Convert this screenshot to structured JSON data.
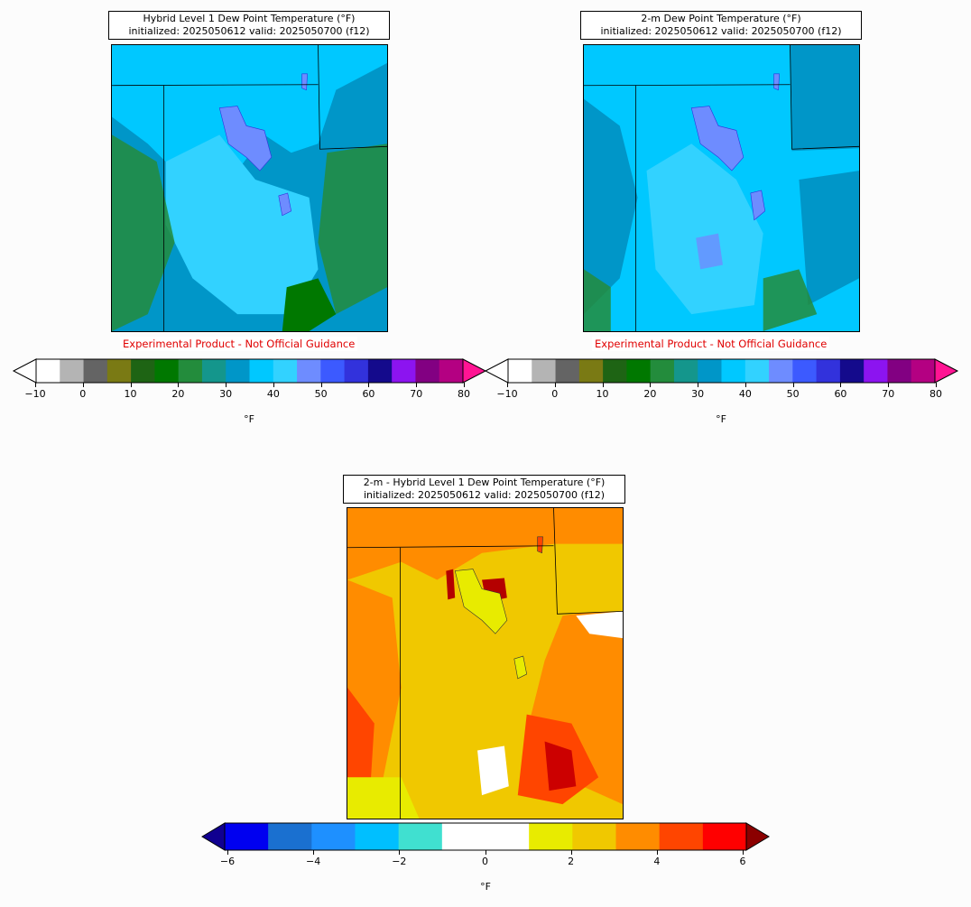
{
  "panels": {
    "hybrid": {
      "title_line1": "Hybrid Level 1 Dew Point Temperature (°F)",
      "title_line2": "initialized: 2025050612 valid: 2025050700 (f12)",
      "disclaimer": "Experimental Product - Not Official Guidance"
    },
    "twometer": {
      "title_line1": "2-m Dew Point Temperature (°F)",
      "title_line2": "initialized: 2025050612 valid: 2025050700 (f12)",
      "disclaimer": "Experimental Product - Not Official Guidance"
    },
    "diff": {
      "title_line1": "2-m - Hybrid Level 1 Dew Point Temperature (°F)",
      "title_line2": "initialized: 2025050612 valid: 2025050700 (f12)"
    }
  },
  "colorbars": {
    "dewpoint": {
      "unit": "°F",
      "ticks": [
        "−10",
        "0",
        "10",
        "20",
        "30",
        "40",
        "50",
        "60",
        "70",
        "80"
      ],
      "colors": [
        "#ffffff",
        "#b4b4b4",
        "#646464",
        "#7a7a14",
        "#1e6414",
        "#007800",
        "#238c3c",
        "#14968c",
        "#0096c8",
        "#00c8ff",
        "#32d2ff",
        "#6e8cff",
        "#3c5aff",
        "#3232dc",
        "#140a8c",
        "#8c14f0",
        "#820082",
        "#b40082"
      ],
      "under_color": "#ffffff",
      "over_color": "#ff1493"
    },
    "difference": {
      "unit": "°F",
      "ticks": [
        "−6",
        "−4",
        "−2",
        "0",
        "2",
        "4",
        "6"
      ],
      "colors": [
        "#0000f0",
        "#1a70d0",
        "#1e90ff",
        "#00bfff",
        "#40e0d0",
        "#ffffff",
        "#ffffff",
        "#e8eb00",
        "#f0c800",
        "#ff8c00",
        "#ff4500",
        "#ff0000"
      ],
      "under_color": "#100090",
      "over_color": "#8b0000"
    }
  }
}
